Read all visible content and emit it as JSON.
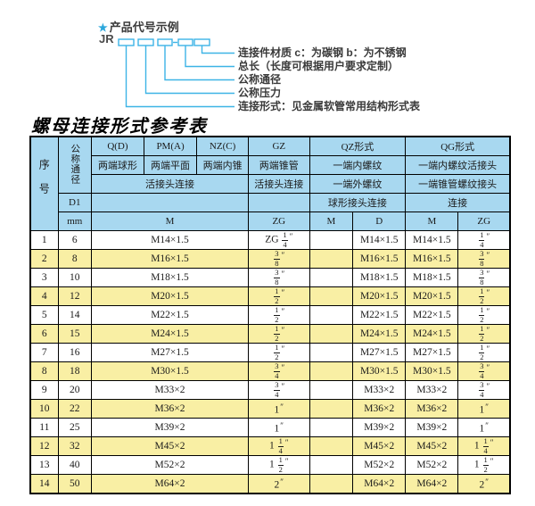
{
  "diagram": {
    "star": "★",
    "heading": "产品代号示例",
    "prefix": "JR",
    "labels": [
      "连接件材质  c：为碳钢  b：为不锈钢",
      "总长（长度可根据用户要求定制）",
      "公称通径",
      "公称压力",
      "连接形式：见金属软管常用结构形式表"
    ]
  },
  "table": {
    "title": "螺母连接形式参考表",
    "header": {
      "seq": "序号",
      "dn": "公称通径",
      "d1": "D1",
      "mm": "mm",
      "q": "Q(D)",
      "q_sub": "两端球形",
      "pm": "PM(A)",
      "pm_sub": "两端平面",
      "nz": "NZ(C)",
      "nz_sub": "两端内锥",
      "gz": "GZ",
      "gz_sub": "两端锥管",
      "gz_conn": "活接头连接",
      "union_conn": "活接头连接",
      "m_label": "M",
      "zg_label": "ZG",
      "qz": "QZ形式",
      "qz_sub1": "一端内螺纹",
      "qz_sub2": "一端外螺纹",
      "qz_conn": "球形接头连接",
      "qz_m": "M",
      "qz_d": "D",
      "qg": "QG形式",
      "qg_sub1": "一端内螺纹活接头",
      "qg_sub2": "一端锥管螺纹接头",
      "qg_conn": "连接",
      "qg_m": "M",
      "qg_zg": "ZG"
    },
    "rows": [
      [
        "1",
        "6",
        "M14×1.5",
        "ZG 1/4″",
        "",
        "M14×1.5",
        "M14×1.5",
        "1/4″"
      ],
      [
        "2",
        "8",
        "M16×1.5",
        "3/8″",
        "",
        "M16×1.5",
        "M16×1.5",
        "3/8″"
      ],
      [
        "3",
        "10",
        "M18×1.5",
        "3/8″",
        "",
        "M18×1.5",
        "M18×1.5",
        "3/8″"
      ],
      [
        "4",
        "12",
        "M20×1.5",
        "1/2″",
        "",
        "M20×1.5",
        "M20×1.5",
        "1/2″"
      ],
      [
        "5",
        "14",
        "M22×1.5",
        "1/2″",
        "",
        "M22×1.5",
        "M22×1.5",
        "1/2″"
      ],
      [
        "6",
        "15",
        "M24×1.5",
        "1/2″",
        "",
        "M24×1.5",
        "M24×1.5",
        "1/2″"
      ],
      [
        "7",
        "16",
        "M27×1.5",
        "1/2″",
        "",
        "M27×1.5",
        "M27×1.5",
        "1/2″"
      ],
      [
        "8",
        "18",
        "M30×1.5",
        "3/4″",
        "",
        "M30×1.5",
        "M30×1.5",
        "3/4″"
      ],
      [
        "9",
        "20",
        "M33×2",
        "3/4″",
        "",
        "M33×2",
        "M33×2",
        "3/4″"
      ],
      [
        "10",
        "22",
        "M36×2",
        "1″",
        "",
        "M36×2",
        "M36×2",
        "1″"
      ],
      [
        "11",
        "25",
        "M39×2",
        "1″",
        "",
        "M39×2",
        "M39×2",
        "1″"
      ],
      [
        "12",
        "32",
        "M45×2",
        "1 1/4″",
        "",
        "M45×2",
        "M45×2",
        "1 1/4″"
      ],
      [
        "13",
        "40",
        "M52×2",
        "1 1/2″",
        "",
        "M52×2",
        "M52×2",
        "1 1/2″"
      ],
      [
        "14",
        "50",
        "M64×2",
        "2″",
        "",
        "M64×2",
        "M64×2",
        "2″"
      ]
    ]
  },
  "colors": {
    "header_bg": "#a8d8f0",
    "row_alt_bg": "#f9efa4",
    "leader_line": "#3db4e6",
    "star_blue": "#2ba7dc",
    "border": "#000000"
  }
}
